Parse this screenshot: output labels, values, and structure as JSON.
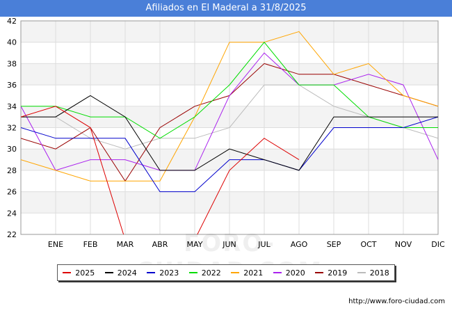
{
  "chart_data": {
    "type": "line",
    "title": "Afiliados en El Maderal a 31/8/2025",
    "categories": [
      "",
      "ENE",
      "FEB",
      "MAR",
      "ABR",
      "MAY",
      "JUN",
      "JUL",
      "AGO",
      "SEP",
      "OCT",
      "NOV",
      "DIC"
    ],
    "ylim": [
      22,
      42
    ],
    "yticks": [
      22,
      24,
      26,
      28,
      30,
      32,
      34,
      36,
      38,
      40,
      42
    ],
    "legend_position": "bottom",
    "grid": true,
    "series": [
      {
        "name": "2025",
        "color": "#dd0000",
        "values": [
          33,
          34,
          32,
          21.5,
          null,
          21.5,
          28,
          31,
          29,
          null,
          null,
          null,
          null
        ]
      },
      {
        "name": "2024",
        "color": "#000000",
        "values": [
          33,
          33,
          35,
          33,
          28,
          28,
          30,
          29,
          28,
          33,
          33,
          33,
          33
        ]
      },
      {
        "name": "2023",
        "color": "#0000cc",
        "values": [
          32,
          31,
          31,
          31,
          26,
          26,
          29,
          29,
          28,
          32,
          32,
          32,
          33
        ]
      },
      {
        "name": "2022",
        "color": "#00dd00",
        "values": [
          34,
          34,
          33,
          33,
          31,
          33,
          36,
          40,
          36,
          36,
          33,
          32,
          32
        ]
      },
      {
        "name": "2021",
        "color": "#ffa500",
        "values": [
          29,
          28,
          27,
          27,
          27,
          33,
          40,
          40,
          41,
          37,
          38,
          35,
          34
        ]
      },
      {
        "name": "2020",
        "color": "#aa22ee",
        "values": [
          34,
          28,
          29,
          29,
          28,
          28,
          35,
          39,
          36,
          36,
          37,
          36,
          29
        ]
      },
      {
        "name": "2019",
        "color": "#990000",
        "values": [
          31,
          30,
          32,
          27,
          32,
          34,
          35,
          38,
          37,
          37,
          36,
          35,
          34
        ]
      },
      {
        "name": "2018",
        "color": "#bbbbbb",
        "values": [
          33,
          33,
          31,
          30,
          31,
          31,
          32,
          36,
          36,
          34,
          33,
          32,
          31
        ]
      }
    ]
  },
  "watermark": "FORO-CIUDAD.COM",
  "source": "http://www.foro-ciudad.com"
}
